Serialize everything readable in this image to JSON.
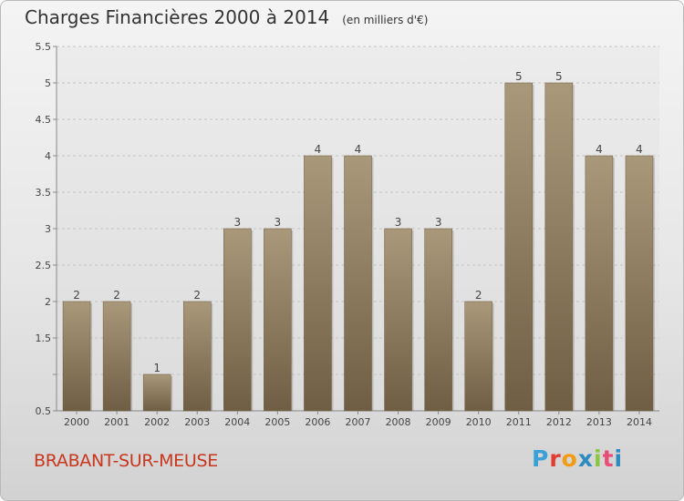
{
  "chart_data": {
    "type": "bar",
    "title": "Charges Financières 2000 à 2014",
    "unit_label": "(en milliers d'€)",
    "categories": [
      "2000",
      "2001",
      "2002",
      "2003",
      "2004",
      "2005",
      "2006",
      "2007",
      "2008",
      "2009",
      "2010",
      "2011",
      "2012",
      "2013",
      "2014"
    ],
    "values": [
      2,
      2,
      1,
      2,
      3,
      3,
      4,
      4,
      3,
      3,
      2,
      5,
      5,
      4,
      4
    ],
    "data_labels": [
      "2",
      "2",
      "1",
      "2",
      "3",
      "3",
      "4",
      "4",
      "3",
      "3",
      "2",
      "5",
      "5",
      "4",
      "4"
    ],
    "ylim": [
      0.5,
      5.5
    ],
    "yticks": [
      0.5,
      1,
      1.5,
      2,
      2.5,
      3,
      3.5,
      4,
      4.5,
      5,
      5.5
    ],
    "ytick_labels": [
      "0.5",
      "",
      "1.5",
      "2",
      "2.5",
      "3",
      "3.5",
      "4",
      "4.5",
      "5",
      "5.5"
    ],
    "grid": true,
    "bar_color": "#8c7b5f",
    "xlabel": "",
    "ylabel": ""
  },
  "footer": {
    "city": "BRABANT-SUR-MEUSE",
    "logo_letters": [
      "P",
      "r",
      "o",
      "x",
      "i",
      "t",
      "i"
    ]
  }
}
